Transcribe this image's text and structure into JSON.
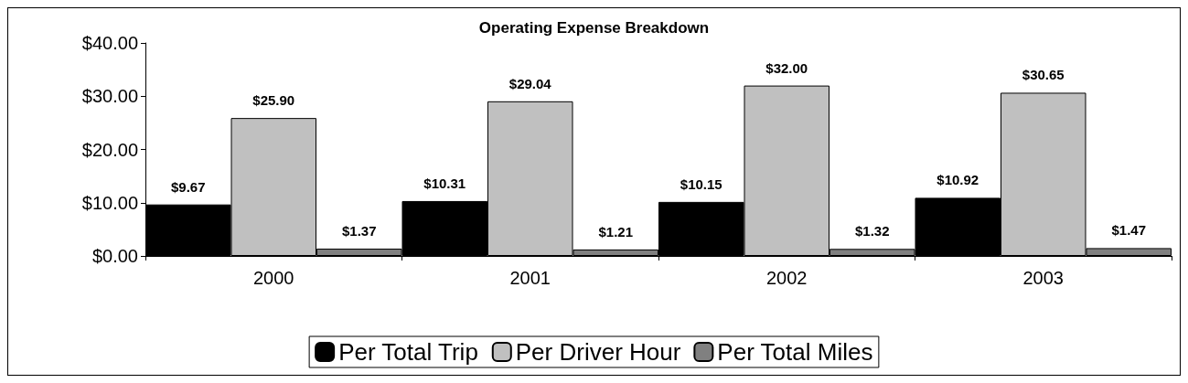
{
  "chart_data": {
    "type": "bar",
    "title": "Operating Expense Breakdown",
    "categories": [
      "2000",
      "2001",
      "2002",
      "2003"
    ],
    "series": [
      {
        "name": "Per Total Trip",
        "color": "#000000",
        "values": [
          9.67,
          10.31,
          10.15,
          10.92
        ]
      },
      {
        "name": "Per Driver Hour",
        "color": "#c0c0c0",
        "values": [
          25.9,
          29.04,
          32.0,
          30.65
        ]
      },
      {
        "name": "Per Total Miles",
        "color": "#808080",
        "values": [
          1.37,
          1.21,
          1.32,
          1.47
        ]
      }
    ],
    "ylim": [
      0,
      40
    ],
    "yticks": [
      {
        "value": 0,
        "label": "$0.00"
      },
      {
        "value": 10,
        "label": "$10.00"
      },
      {
        "value": 20,
        "label": "$20.00"
      },
      {
        "value": 30,
        "label": "$30.00"
      },
      {
        "value": 40,
        "label": "$40.00"
      }
    ],
    "value_labels": [
      [
        "$9.67",
        "$10.31",
        "$10.15",
        "$10.92"
      ],
      [
        "$25.90",
        "$29.04",
        "$32.00",
        "$30.65"
      ],
      [
        "$1.37",
        "$1.21",
        "$1.32",
        "$1.47"
      ]
    ],
    "grid": false,
    "legend": "bottom"
  }
}
